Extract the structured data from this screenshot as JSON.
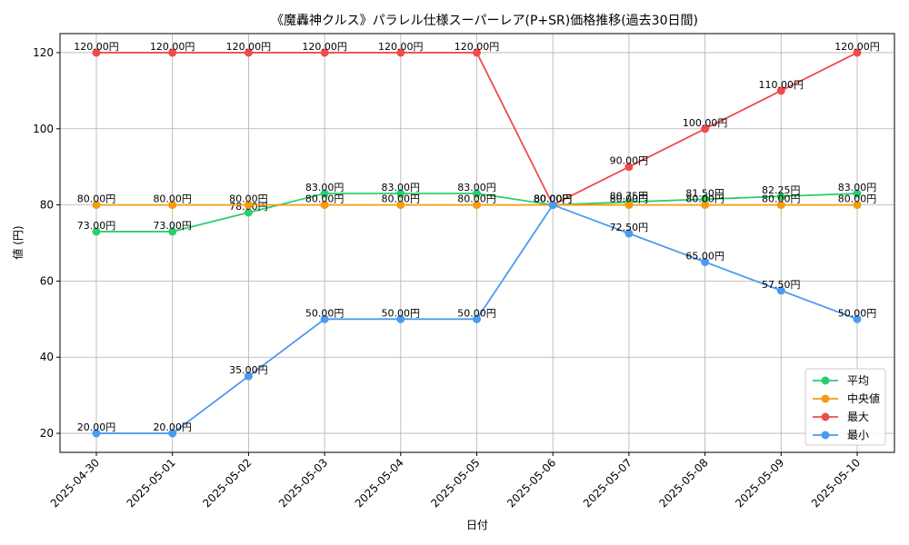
{
  "chart_data": {
    "type": "line",
    "title": "《魔轟神クルス》パラレル仕様スーパーレア(P+SR)価格推移(過去30日間)",
    "xlabel": "日付",
    "ylabel": "値 (円)",
    "categories": [
      "2025-04-30",
      "2025-05-01",
      "2025-05-02",
      "2025-05-03",
      "2025-05-04",
      "2025-05-05",
      "2025-05-06",
      "2025-05-07",
      "2025-05-08",
      "2025-05-09",
      "2025-05-10"
    ],
    "ylim": [
      15,
      125
    ],
    "yticks": [
      20,
      40,
      60,
      80,
      100,
      120
    ],
    "grid": true,
    "legend_position": "bottom-right",
    "label_suffix": "円",
    "series": [
      {
        "name": "平均",
        "color": "#2ecc71",
        "values": [
          73,
          73,
          78,
          83,
          83,
          83,
          80,
          80.75,
          81.5,
          82.25,
          83
        ]
      },
      {
        "name": "中央値",
        "color": "#f39c12",
        "values": [
          80,
          80,
          80,
          80,
          80,
          80,
          80,
          80,
          80,
          80,
          80
        ]
      },
      {
        "name": "最大",
        "color": "#ef4b4b",
        "values": [
          120,
          120,
          120,
          120,
          120,
          120,
          80,
          90,
          100,
          110,
          120
        ]
      },
      {
        "name": "最小",
        "color": "#4b9bef",
        "values": [
          20,
          20,
          35,
          50,
          50,
          50,
          80,
          72.5,
          65,
          57.5,
          50
        ]
      }
    ]
  }
}
